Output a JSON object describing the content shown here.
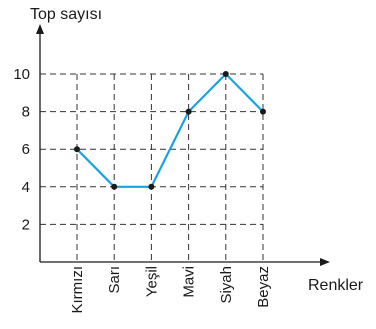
{
  "chart_data": {
    "type": "line",
    "ylabel": "Top sayısı",
    "xlabel": "Renkler",
    "categories": [
      "Kırmızı",
      "Sarı",
      "Yeşil",
      "Mavi",
      "Siyah",
      "Beyaz"
    ],
    "values": [
      6,
      4,
      4,
      8,
      10,
      8
    ],
    "yticks": [
      2,
      4,
      6,
      8,
      10
    ],
    "ylim": [
      0,
      10
    ],
    "grid": true,
    "colors": {
      "line": "#1aa3e0",
      "point": "#1a1a1a",
      "axis": "#1a1a1a",
      "grid": "#333333"
    }
  }
}
